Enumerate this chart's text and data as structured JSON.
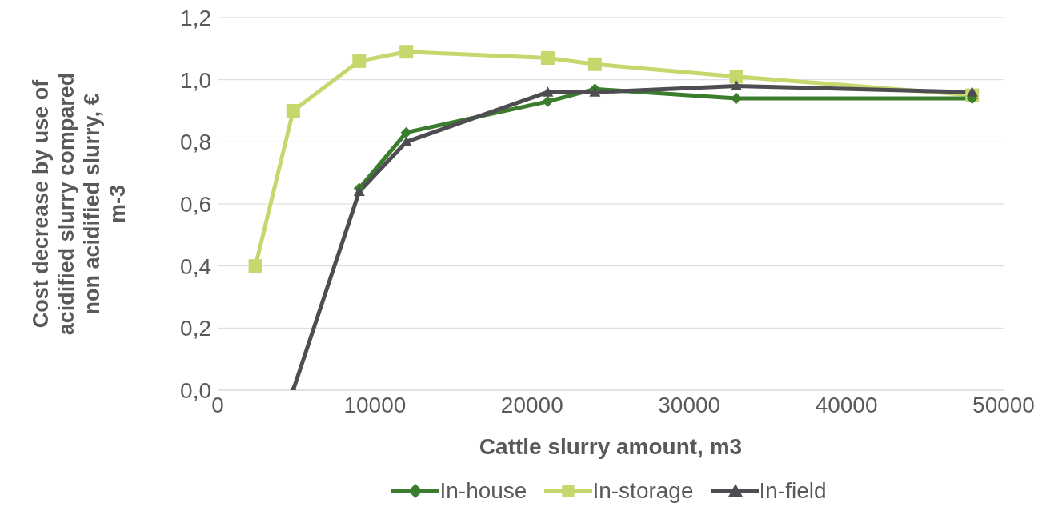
{
  "chart_data": {
    "type": "line",
    "xlabel": "Cattle slurry amount, m3",
    "ylabel": "Cost decrease  by use of acidified slurry compared non acidified slurry, € m-3",
    "xlim": [
      0,
      50000
    ],
    "xticks": [
      0,
      10000,
      20000,
      30000,
      40000,
      50000
    ],
    "ylim": [
      0,
      1.2
    ],
    "yticks": [
      {
        "value": 0,
        "label": "0,0"
      },
      {
        "value": 0.2,
        "label": "0,2"
      },
      {
        "value": 0.4,
        "label": "0,4"
      },
      {
        "value": 0.6,
        "label": "0,6"
      },
      {
        "value": 0.8,
        "label": "0,8"
      },
      {
        "value": 1,
        "label": "1,0"
      },
      {
        "value": 1.2,
        "label": "1,2"
      }
    ],
    "grid": "y",
    "legend": "bottom",
    "series": [
      {
        "name": "In-house",
        "color": "#3a7d2c",
        "marker": "diamond",
        "x": [
          9000,
          12000,
          21000,
          24000,
          33000,
          48000
        ],
        "values": [
          0.65,
          0.83,
          0.93,
          0.97,
          0.94,
          0.94
        ]
      },
      {
        "name": "In-storage",
        "color": "#c5d86d",
        "marker": "square",
        "x": [
          2400,
          4800,
          9000,
          12000,
          21000,
          24000,
          33000,
          48000
        ],
        "values": [
          0.4,
          0.9,
          1.06,
          1.09,
          1.07,
          1.05,
          1.01,
          0.95
        ]
      },
      {
        "name": "In-field",
        "color": "#4d4d52",
        "marker": "triangle",
        "x": [
          4800,
          9000,
          12000,
          21000,
          24000,
          33000,
          48000
        ],
        "values": [
          0,
          0.64,
          0.8,
          0.96,
          0.96,
          0.98,
          0.96
        ]
      }
    ]
  }
}
